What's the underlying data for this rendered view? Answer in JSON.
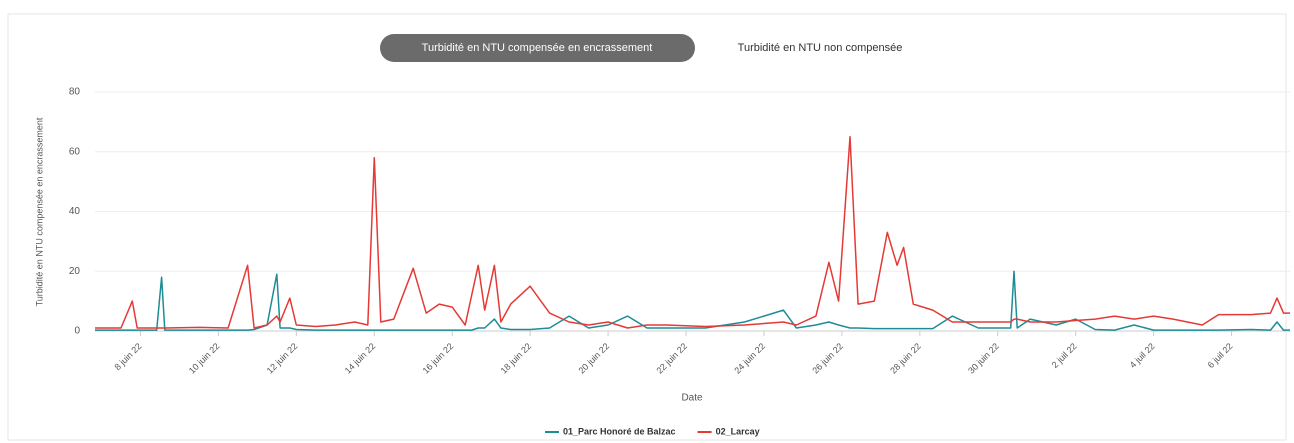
{
  "tabs": [
    "Turbidité en NTU compensée en encrassement",
    "Turbidité en NTU non compensée"
  ],
  "chart_data": {
    "type": "line",
    "ylabel": "Turbidité en NTU compensée en encrassement",
    "xlabel": "Date",
    "xlim": [
      "2022-06-06T20:00",
      "2022-07-07T12:00"
    ],
    "xticks": [
      {
        "value": "2022-06-08T00:00",
        "label": "8 juin 22"
      },
      {
        "value": "2022-06-10T00:00",
        "label": "10 juin 22"
      },
      {
        "value": "2022-06-12T00:00",
        "label": "12 juin 22"
      },
      {
        "value": "2022-06-14T00:00",
        "label": "14 juin 22"
      },
      {
        "value": "2022-06-16T00:00",
        "label": "16 juin 22"
      },
      {
        "value": "2022-06-18T00:00",
        "label": "18 juin 22"
      },
      {
        "value": "2022-06-20T00:00",
        "label": "20 juin 22"
      },
      {
        "value": "2022-06-22T00:00",
        "label": "22 juin 22"
      },
      {
        "value": "2022-06-24T00:00",
        "label": "24 juin 22"
      },
      {
        "value": "2022-06-26T00:00",
        "label": "26 juin 22"
      },
      {
        "value": "2022-06-28T00:00",
        "label": "28 juin 22"
      },
      {
        "value": "2022-06-30T00:00",
        "label": "30 juin 22"
      },
      {
        "value": "2022-07-02T00:00",
        "label": "2 juil 22"
      },
      {
        "value": "2022-07-04T00:00",
        "label": "4 juil 22"
      },
      {
        "value": "2022-07-06T00:00",
        "label": "6 juil 22"
      }
    ],
    "ylim": [
      0,
      80
    ],
    "yticks": [
      0,
      20,
      40,
      60,
      80
    ],
    "grid": true,
    "legend": "bottom",
    "x": [
      "2022-06-06T20:00",
      "2022-06-07T12:00",
      "2022-06-07T19:00",
      "2022-06-07T22:00",
      "2022-06-08T10:00",
      "2022-06-08T13:00",
      "2022-06-08T15:00",
      "2022-06-09T12:00",
      "2022-06-10T06:00",
      "2022-06-10T18:00",
      "2022-06-10T22:00",
      "2022-06-11T06:00",
      "2022-06-11T12:00",
      "2022-06-11T14:00",
      "2022-06-11T20:00",
      "2022-06-12T00:00",
      "2022-06-12T12:00",
      "2022-06-13T00:00",
      "2022-06-13T12:00",
      "2022-06-13T20:00",
      "2022-06-14T00:00",
      "2022-06-14T04:00",
      "2022-06-14T12:00",
      "2022-06-15T00:00",
      "2022-06-15T08:00",
      "2022-06-15T16:00",
      "2022-06-16T00:00",
      "2022-06-16T08:00",
      "2022-06-16T12:00",
      "2022-06-16T16:00",
      "2022-06-16T20:00",
      "2022-06-17T02:00",
      "2022-06-17T06:00",
      "2022-06-17T12:00",
      "2022-06-18T00:00",
      "2022-06-18T12:00",
      "2022-06-19T00:00",
      "2022-06-19T12:00",
      "2022-06-20T00:00",
      "2022-06-20T12:00",
      "2022-06-21T00:00",
      "2022-06-21T12:00",
      "2022-06-22T12:00",
      "2022-06-23T12:00",
      "2022-06-24T00:00",
      "2022-06-24T12:00",
      "2022-06-24T20:00",
      "2022-06-25T08:00",
      "2022-06-25T16:00",
      "2022-06-25T22:00",
      "2022-06-26T05:00",
      "2022-06-26T10:00",
      "2022-06-26T20:00",
      "2022-06-27T04:00",
      "2022-06-27T10:00",
      "2022-06-27T14:00",
      "2022-06-27T20:00",
      "2022-06-28T08:00",
      "2022-06-28T20:00",
      "2022-06-29T12:00",
      "2022-06-30T08:00",
      "2022-06-30T10:00",
      "2022-06-30T12:00",
      "2022-06-30T20:00",
      "2022-07-01T12:00",
      "2022-07-02T00:00",
      "2022-07-02T12:00",
      "2022-07-03T00:00",
      "2022-07-03T12:00",
      "2022-07-04T00:00",
      "2022-07-04T12:00",
      "2022-07-05T06:00",
      "2022-07-05T16:00",
      "2022-07-06T12:00",
      "2022-07-07T00:00",
      "2022-07-07T04:00",
      "2022-07-07T08:00",
      "2022-07-07T12:00"
    ],
    "series": [
      {
        "name": "01_Parc Honoré de Balzac",
        "color": "#1e8c96",
        "values": [
          0.3,
          0.3,
          0.3,
          0.3,
          0.3,
          18,
          0.3,
          0.3,
          0.3,
          0.3,
          0.5,
          2,
          19,
          1,
          1,
          0.5,
          0.3,
          0.3,
          0.3,
          0.3,
          0.3,
          0.3,
          0.3,
          0.3,
          0.3,
          0.3,
          0.3,
          0.3,
          0.3,
          1,
          1,
          4,
          1,
          0.5,
          0.5,
          1,
          5,
          1,
          2,
          5,
          1,
          1,
          1,
          3,
          5,
          7,
          1,
          2,
          3,
          2,
          1,
          1,
          0.8,
          0.8,
          0.8,
          0.8,
          0.8,
          0.8,
          5,
          1,
          1,
          20,
          1,
          4,
          2,
          4,
          0.5,
          0.3,
          2,
          0.3,
          0.3,
          0.3,
          0.3,
          0.5,
          0.3,
          3,
          0.3,
          0.3
        ]
      },
      {
        "name": "02_Larcay",
        "color": "#e53935",
        "values": [
          1,
          1,
          10,
          1,
          1,
          1,
          1,
          1.2,
          1,
          22,
          1,
          2,
          5,
          3,
          11,
          2,
          1.5,
          2,
          3,
          2,
          58,
          3,
          4,
          21,
          6,
          9,
          8,
          2,
          12,
          22,
          7,
          22,
          3,
          9,
          15,
          6,
          3,
          2,
          3,
          1,
          2,
          2,
          1.5,
          2,
          2.5,
          3,
          2,
          5,
          23,
          10,
          65,
          9,
          10,
          33,
          22,
          28,
          9,
          7,
          3,
          3,
          3,
          4,
          4,
          3,
          3,
          3.5,
          4,
          5,
          4,
          5,
          4,
          2,
          5.5,
          5.5,
          6,
          11,
          6,
          6
        ]
      }
    ]
  }
}
